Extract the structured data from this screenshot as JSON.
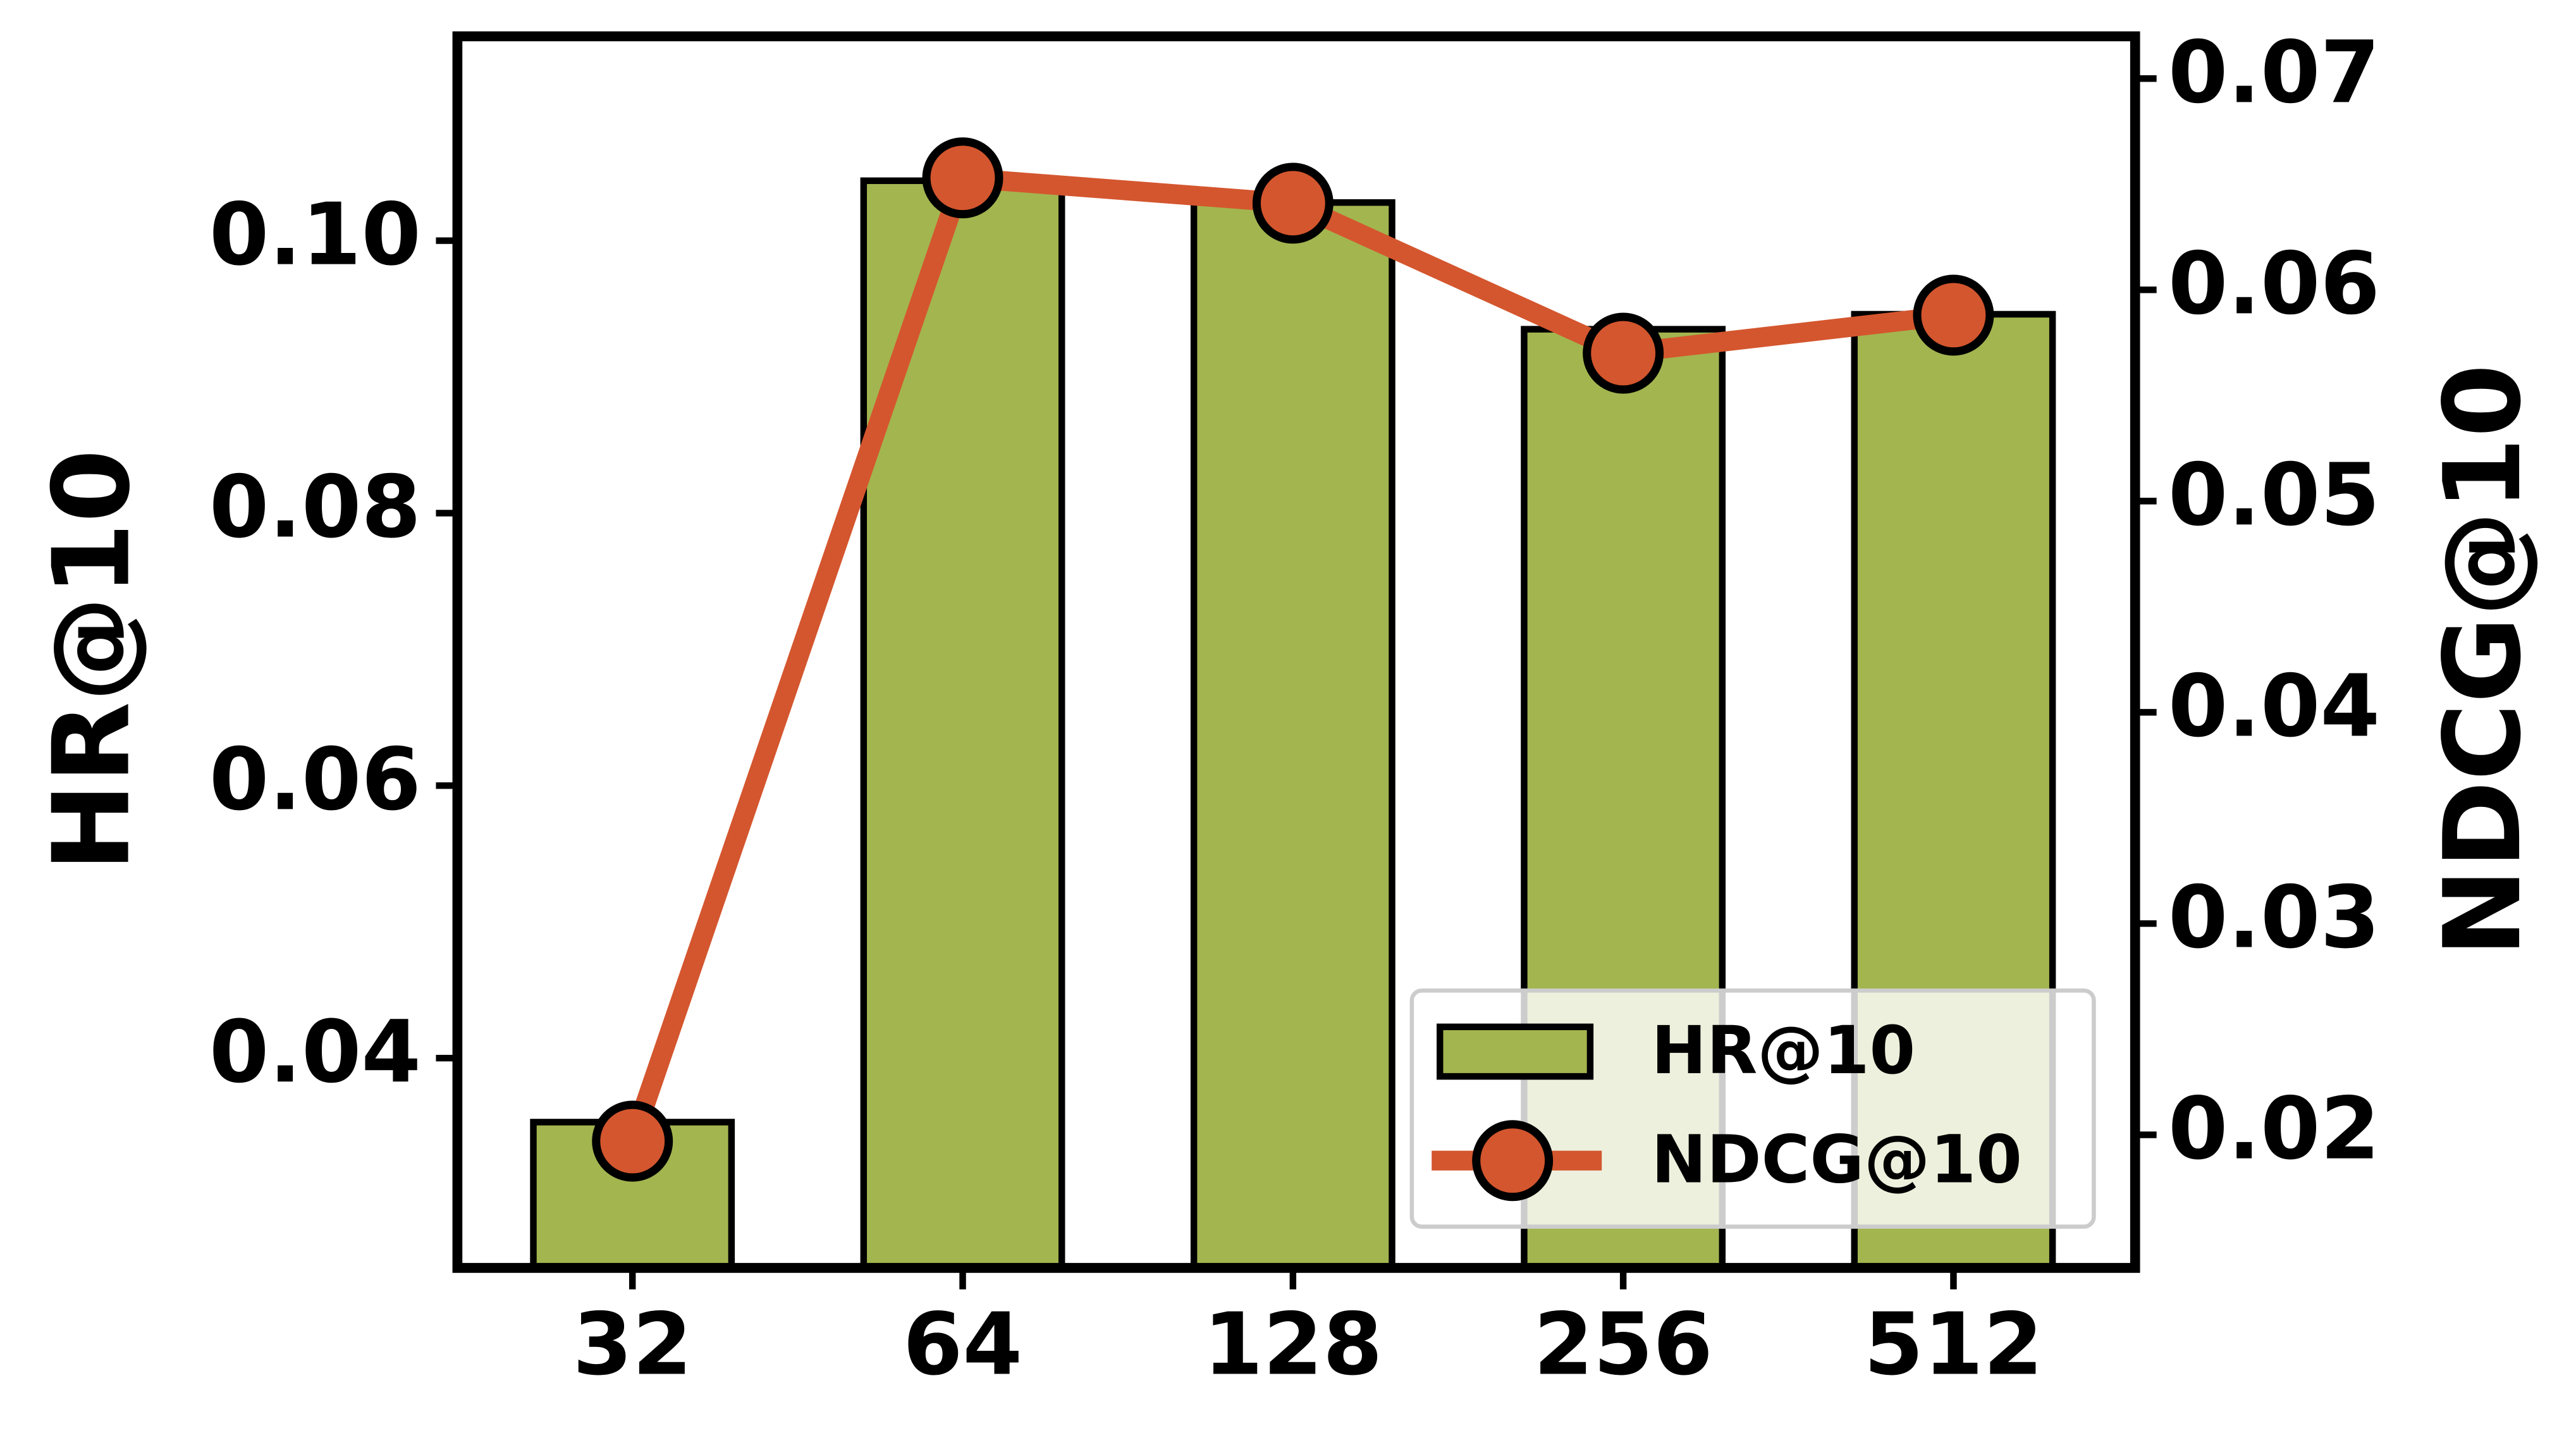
{
  "chart_data": {
    "type": "bar",
    "categories": [
      "32",
      "64",
      "128",
      "256",
      "512"
    ],
    "series": [
      {
        "name": "HR@10",
        "type": "bar",
        "color": "#a3b54f",
        "values": [
          0.0353,
          0.1044,
          0.1028,
          0.0935,
          0.0946
        ]
      },
      {
        "name": "NDCG@10",
        "type": "line",
        "axis": "y2",
        "color": "#d4562e",
        "values": [
          0.0197,
          0.0653,
          0.0641,
          0.057,
          0.0588
        ]
      }
    ],
    "ylabel": "HR@10",
    "y2label": "NDCG@10",
    "ylim": [
      0.0246,
      0.115
    ],
    "yticks": [
      0.04,
      0.06,
      0.08,
      {
        "value": 0.1,
        "label": "0.10"
      }
    ],
    "y2lim": [
      0.0137,
      0.072
    ],
    "y2ticks": [
      0.02,
      0.03,
      0.04,
      0.05,
      0.06,
      0.07
    ],
    "legend": "lower right",
    "grid": false
  }
}
